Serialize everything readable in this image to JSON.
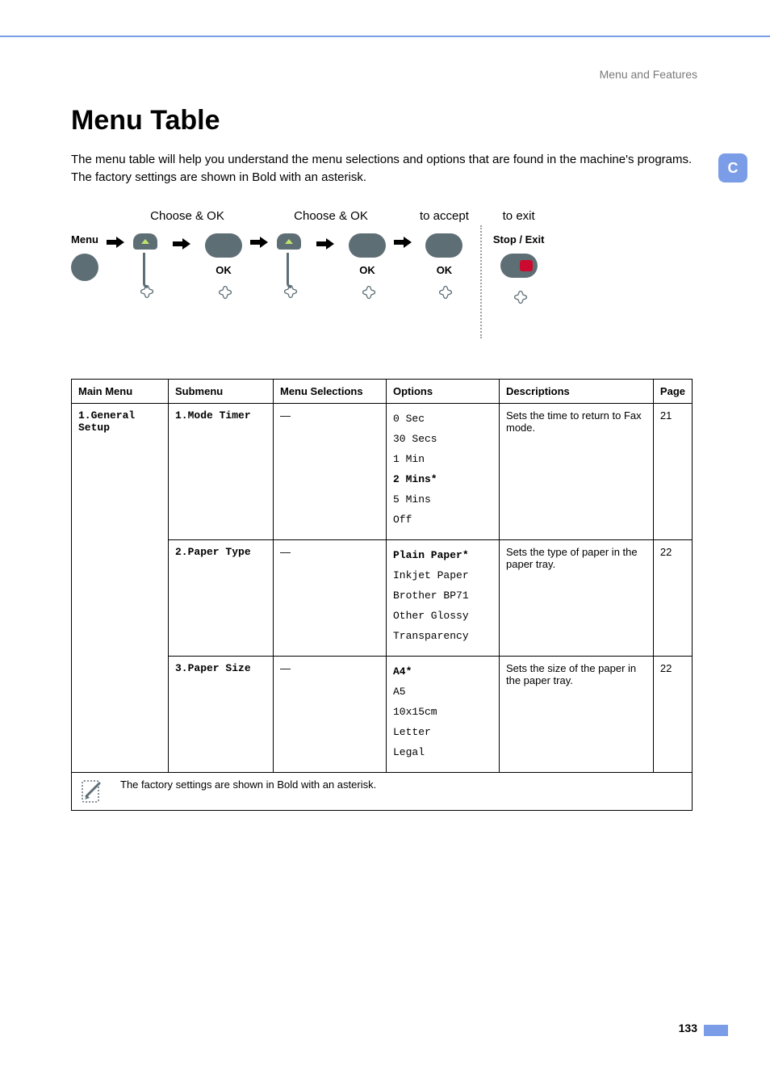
{
  "header": {
    "section": "Menu and Features",
    "tab_letter": "C"
  },
  "title": "Menu Table",
  "intro": "The menu table will help you understand the menu selections and options that are found in the machine's programs. The factory settings are shown in Bold with an asterisk.",
  "flow": {
    "choose_ok": "Choose & OK",
    "to_accept": "to accept",
    "to_exit": "to exit",
    "menu_key": "Menu",
    "ok": "OK",
    "stop_exit": "Stop / Exit"
  },
  "table": {
    "headers": {
      "main_menu": "Main Menu",
      "submenu": "Submenu",
      "selections": "Menu Selections",
      "options": "Options",
      "descriptions": "Descriptions",
      "page": "Page"
    },
    "main_menu": "1.General Setup",
    "rows": [
      {
        "submenu": "1.Mode Timer",
        "selections": "—",
        "options": [
          {
            "text": "0 Sec",
            "bold": false
          },
          {
            "text": "30 Secs",
            "bold": false
          },
          {
            "text": "1 Min",
            "bold": false
          },
          {
            "text": "2 Mins*",
            "bold": true
          },
          {
            "text": "5 Mins",
            "bold": false
          },
          {
            "text": "Off",
            "bold": false
          }
        ],
        "description": "Sets the time to return to Fax mode.",
        "page": "21"
      },
      {
        "submenu": "2.Paper Type",
        "selections": "—",
        "options": [
          {
            "text": "Plain Paper*",
            "bold": true
          },
          {
            "text": "Inkjet Paper",
            "bold": false
          },
          {
            "text": "Brother BP71",
            "bold": false
          },
          {
            "text": "Other Glossy",
            "bold": false
          },
          {
            "text": "Transparency",
            "bold": false
          }
        ],
        "description": "Sets the type of paper in the paper tray.",
        "page": "22"
      },
      {
        "submenu": "3.Paper Size",
        "selections": "—",
        "options": [
          {
            "text": "A4*",
            "bold": true
          },
          {
            "text": "A5",
            "bold": false
          },
          {
            "text": "10x15cm",
            "bold": false
          },
          {
            "text": "Letter",
            "bold": false
          },
          {
            "text": "Legal",
            "bold": false
          }
        ],
        "description": "Sets the size of the paper in the paper tray.",
        "page": "22"
      }
    ],
    "footnote": "The factory settings are shown in Bold with an asterisk."
  },
  "page_number": "133",
  "colors": {
    "accent": "#7b9de8",
    "text_muted": "#7a7a7a",
    "button_grey": "#5e6e75",
    "stop_red": "#cc0a2f"
  }
}
